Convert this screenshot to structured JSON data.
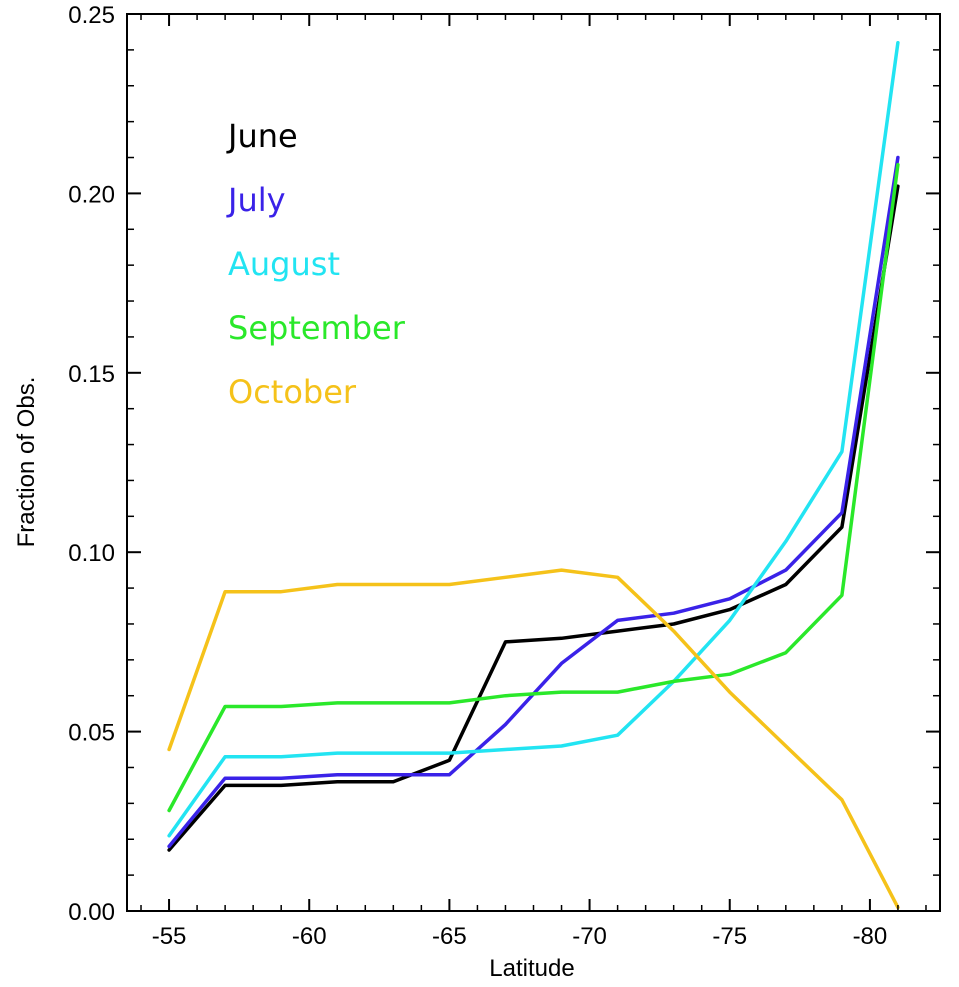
{
  "chart_data": {
    "type": "line",
    "title": "",
    "xlabel": "Latitude",
    "ylabel": "Fraction of Obs.",
    "xlim": [
      -53.5,
      -82.5
    ],
    "ylim": [
      0,
      0.25
    ],
    "x_ticks": [
      -55,
      -60,
      -65,
      -70,
      -75,
      -80
    ],
    "x_tick_labels": [
      "-55",
      "-60",
      "-65",
      "-70",
      "-75",
      "-80"
    ],
    "y_ticks": [
      0,
      0.05,
      0.1,
      0.15,
      0.2,
      0.25
    ],
    "y_tick_labels": [
      "0.00",
      "0.05",
      "0.10",
      "0.15",
      "0.20",
      "0.25"
    ],
    "grid": false,
    "legend_position": "upper-left",
    "x": [
      -55,
      -57,
      -59,
      -61,
      -63,
      -65,
      -67,
      -69,
      -71,
      -73,
      -75,
      -77,
      -79,
      -81
    ],
    "series": [
      {
        "name": "June",
        "color": "#000000",
        "values": [
          0.017,
          0.035,
          0.035,
          0.036,
          0.036,
          0.042,
          0.075,
          0.076,
          0.078,
          0.08,
          0.084,
          0.091,
          0.107,
          0.202
        ]
      },
      {
        "name": "July",
        "color": "#3a22e8",
        "values": [
          0.018,
          0.037,
          0.037,
          0.038,
          0.038,
          0.038,
          0.052,
          0.069,
          0.081,
          0.083,
          0.087,
          0.095,
          0.111,
          0.21
        ]
      },
      {
        "name": "August",
        "color": "#22e4f2",
        "values": [
          0.021,
          0.043,
          0.043,
          0.044,
          0.044,
          0.044,
          0.045,
          0.046,
          0.049,
          0.064,
          0.081,
          0.103,
          0.128,
          0.242
        ]
      },
      {
        "name": "September",
        "color": "#2ae82a",
        "values": [
          0.028,
          0.057,
          0.057,
          0.058,
          0.058,
          0.058,
          0.06,
          0.061,
          0.061,
          0.064,
          0.066,
          0.072,
          0.088,
          0.208
        ]
      },
      {
        "name": "October",
        "color": "#f5c21a",
        "values": [
          0.045,
          0.089,
          0.089,
          0.091,
          0.091,
          0.091,
          0.093,
          0.095,
          0.093,
          0.078,
          0.061,
          0.046,
          0.031,
          0.001
        ]
      }
    ]
  }
}
